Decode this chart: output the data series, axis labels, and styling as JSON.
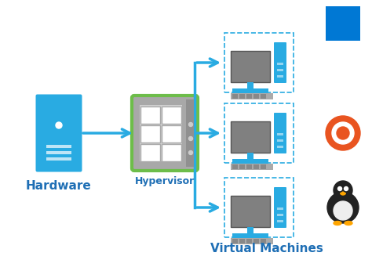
{
  "title": "",
  "background_color": "#ffffff",
  "hardware_label": "Hardware",
  "hypervisor_label": "Hypervisor",
  "vm_label": "Virtual Machines",
  "label_color": "#1F6FB5",
  "arrow_color": "#29ABE2",
  "hardware_color": "#29ABE2",
  "hypervisor_border_color": "#6DBD4A",
  "hypervisor_bg_color": "#A8A8A8",
  "hypervisor_inner_color": "#D0D0D0",
  "vm_body_color": "#29ABE2",
  "vm_screen_color": "#808080",
  "vm_screen_dark": "#606060",
  "dashed_border_color": "#29ABE2"
}
